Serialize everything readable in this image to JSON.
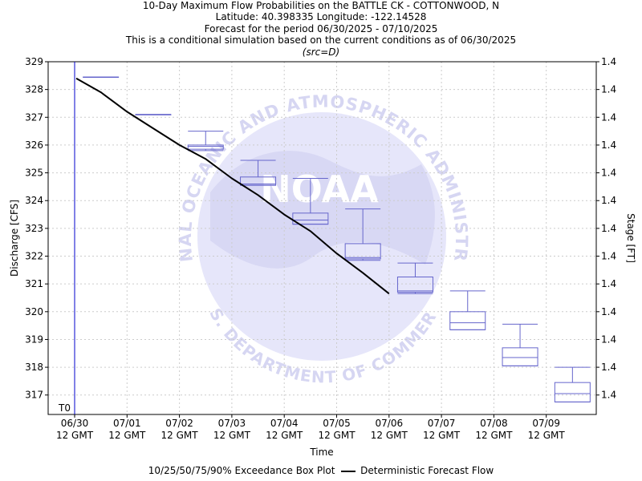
{
  "titles": {
    "line1": "10-Day Maximum Flow Probabilities on the BATTLE CK - COTTONWOOD, N",
    "line2": "Latitude: 40.398335 Longitude: -122.14528",
    "line3": "Forecast for the period 06/30/2025 - 07/10/2025",
    "line4": "This is a conditional simulation based on the current conditions as of 06/30/2025",
    "line5": "(src=D)"
  },
  "watermark": {
    "top_text": "NATIONAL OCEANIC AND ATMOSPHERIC ADMINISTRATION",
    "bottom_text": "U.S. DEPARTMENT OF COMMERCE",
    "center_text": "NOAA"
  },
  "legend": {
    "box_label": "10/25/50/75/90% Exceedance Box Plot",
    "line_label": "Deterministic Forecast Flow"
  },
  "chart_data": {
    "type": "box",
    "xlabel": "Time",
    "ylabel": "Discharge [CFS]",
    "y2label": "Stage [FT]",
    "ylim": [
      316.3,
      329
    ],
    "y_ticks": [
      317,
      318,
      319,
      320,
      321,
      322,
      323,
      324,
      325,
      326,
      327,
      328,
      329
    ],
    "y2_tick_label": "1.4",
    "x_day_range": [
      0,
      10
    ],
    "x_ticks": [
      {
        "day": 0,
        "date": "06/30",
        "time": "12 GMT"
      },
      {
        "day": 1,
        "date": "07/01",
        "time": "12 GMT"
      },
      {
        "day": 2,
        "date": "07/02",
        "time": "12 GMT"
      },
      {
        "day": 3,
        "date": "07/03",
        "time": "12 GMT"
      },
      {
        "day": 4,
        "date": "07/04",
        "time": "12 GMT"
      },
      {
        "day": 5,
        "date": "07/05",
        "time": "12 GMT"
      },
      {
        "day": 6,
        "date": "07/06",
        "time": "12 GMT"
      },
      {
        "day": 7,
        "date": "07/07",
        "time": "12 GMT"
      },
      {
        "day": 8,
        "date": "07/08",
        "time": "12 GMT"
      },
      {
        "day": 9,
        "date": "07/09",
        "time": "12 GMT"
      }
    ],
    "t0_label": "T0",
    "boxes": [
      {
        "day": 0.5,
        "p10": 328.45,
        "p25": 328.45,
        "p50": 328.45,
        "p75": 328.45,
        "p90": 328.45
      },
      {
        "day": 1.5,
        "p10": 327.1,
        "p25": 327.1,
        "p50": 327.1,
        "p75": 327.1,
        "p90": 327.1
      },
      {
        "day": 2.5,
        "p10": 325.8,
        "p25": 325.85,
        "p50": 325.95,
        "p75": 326.0,
        "p90": 326.5
      },
      {
        "day": 3.5,
        "p10": 324.55,
        "p25": 324.55,
        "p50": 324.6,
        "p75": 324.85,
        "p90": 325.45
      },
      {
        "day": 4.5,
        "p10": 323.15,
        "p25": 323.15,
        "p50": 323.3,
        "p75": 323.55,
        "p90": 324.8
      },
      {
        "day": 5.5,
        "p10": 321.85,
        "p25": 321.9,
        "p50": 321.95,
        "p75": 322.45,
        "p90": 323.7
      },
      {
        "day": 6.5,
        "p10": 320.65,
        "p25": 320.7,
        "p50": 320.75,
        "p75": 321.25,
        "p90": 321.75
      },
      {
        "day": 7.5,
        "p10": 319.35,
        "p25": 319.35,
        "p50": 319.6,
        "p75": 320.0,
        "p90": 320.75
      },
      {
        "day": 8.5,
        "p10": 318.05,
        "p25": 318.05,
        "p50": 318.35,
        "p75": 318.7,
        "p90": 319.55
      },
      {
        "day": 9.5,
        "p10": 316.75,
        "p25": 316.75,
        "p50": 317.05,
        "p75": 317.45,
        "p90": 318.0
      }
    ],
    "series": [
      {
        "name": "Deterministic Forecast Flow",
        "x_days": [
          0.03,
          0.5,
          1.0,
          1.5,
          2.0,
          2.5,
          3.0,
          3.5,
          4.0,
          4.5,
          5.0,
          5.5,
          6.0
        ],
        "values": [
          328.4,
          327.9,
          327.2,
          326.6,
          326.0,
          325.5,
          324.8,
          324.2,
          323.5,
          322.9,
          322.1,
          321.4,
          320.65
        ]
      }
    ],
    "grid": true,
    "legend_position": "bottom-center"
  }
}
